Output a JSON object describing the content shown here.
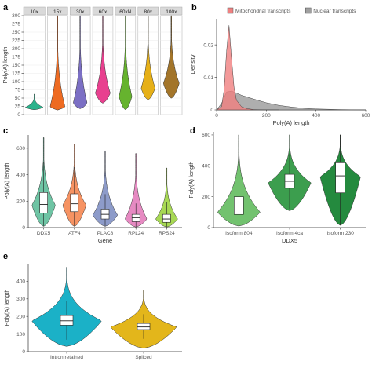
{
  "chart_data": [
    {
      "id": "a",
      "panel_label": "a",
      "type": "violin",
      "ylabel": "Poly(A) length",
      "ylim": [
        0,
        300
      ],
      "yticks": [
        0,
        25,
        50,
        75,
        100,
        125,
        150,
        175,
        200,
        225,
        250,
        275,
        300
      ],
      "facet_labels": [
        "10x",
        "15x",
        "30x",
        "60x",
        "60xN",
        "80x",
        "100x"
      ],
      "colors": [
        "#2bb38c",
        "#ee6b22",
        "#7b6fc4",
        "#e8408f",
        "#66b32e",
        "#e6b018",
        "#a3752a"
      ],
      "violins": [
        {
          "label": "10x",
          "min": 15,
          "max": 62,
          "peak": 22,
          "width": 0.9
        },
        {
          "label": "15x",
          "min": 14,
          "max": 300,
          "peak": 24,
          "width": 0.8
        },
        {
          "label": "30x",
          "min": 18,
          "max": 300,
          "peak": 35,
          "width": 0.75
        },
        {
          "label": "60x",
          "min": 35,
          "max": 300,
          "peak": 65,
          "width": 0.8
        },
        {
          "label": "60xN",
          "min": 15,
          "max": 300,
          "peak": 55,
          "width": 0.7
        },
        {
          "label": "80x",
          "min": 45,
          "max": 300,
          "peak": 80,
          "width": 0.75
        },
        {
          "label": "100x",
          "min": 50,
          "max": 300,
          "peak": 95,
          "width": 0.8
        }
      ]
    },
    {
      "id": "b",
      "panel_label": "b",
      "type": "density",
      "xlabel": "Poly(A) length",
      "ylabel": "Density",
      "xlim": [
        0,
        600
      ],
      "ylim": [
        0,
        0.028
      ],
      "xticks": [
        0,
        200,
        400,
        600
      ],
      "yticks": [
        0,
        0.01,
        0.02
      ],
      "legend_position": "top",
      "series": [
        {
          "name": "Mitochondrial transcripts",
          "color": "#f08080",
          "x": [
            0,
            20,
            30,
            40,
            50,
            60,
            70,
            80,
            100,
            120,
            150,
            200,
            250
          ],
          "y": [
            0,
            0.001,
            0.006,
            0.018,
            0.026,
            0.016,
            0.007,
            0.003,
            0.001,
            0.0004,
            0.0001,
            0,
            0
          ]
        },
        {
          "name": "Nuclear transcripts",
          "color": "#a0a0a0",
          "x": [
            0,
            20,
            40,
            60,
            80,
            100,
            150,
            200,
            250,
            300,
            350,
            400,
            450,
            500,
            600
          ],
          "y": [
            0,
            0.002,
            0.0055,
            0.0058,
            0.0052,
            0.0045,
            0.0033,
            0.0022,
            0.0014,
            0.0009,
            0.0005,
            0.0003,
            0.0002,
            0.0001,
            0
          ]
        }
      ]
    },
    {
      "id": "c",
      "panel_label": "c",
      "type": "violin",
      "xlabel": "Gene",
      "ylabel": "Poly(A) length",
      "ylim": [
        0,
        700
      ],
      "yticks": [
        0,
        200,
        400,
        600
      ],
      "colors": [
        "#6ec4a4",
        "#f69363",
        "#8d9bc9",
        "#e68ac2",
        "#a7d854"
      ],
      "violins": [
        {
          "label": "DDX5",
          "min": 10,
          "max": 680,
          "q1": 110,
          "median": 175,
          "q3": 265,
          "peak": 170,
          "width": 0.85
        },
        {
          "label": "ATF4",
          "min": 10,
          "max": 630,
          "q1": 120,
          "median": 180,
          "q3": 255,
          "peak": 170,
          "width": 0.85
        },
        {
          "label": "PLAC8",
          "min": 10,
          "max": 580,
          "q1": 65,
          "median": 100,
          "q3": 140,
          "peak": 95,
          "width": 0.9
        },
        {
          "label": "RPL24",
          "min": 5,
          "max": 560,
          "q1": 45,
          "median": 75,
          "q3": 100,
          "peak": 65,
          "width": 0.8
        },
        {
          "label": "RPS24",
          "min": 5,
          "max": 450,
          "q1": 40,
          "median": 65,
          "q3": 100,
          "peak": 65,
          "width": 0.8
        }
      ]
    },
    {
      "id": "d",
      "panel_label": "d",
      "type": "violin",
      "xlabel": "DDX5",
      "ylabel": "Poly(A) length",
      "ylim": [
        0,
        620
      ],
      "yticks": [
        0,
        200,
        400,
        600
      ],
      "colors": [
        "#72c26f",
        "#3c9e4e",
        "#248a3e"
      ],
      "violins": [
        {
          "label": "Isoform 804",
          "min": 10,
          "max": 600,
          "q1": 85,
          "median": 140,
          "q3": 200,
          "peak": 100,
          "width": 0.9
        },
        {
          "label": "Isoform 4ca",
          "min": 110,
          "max": 600,
          "q1": 255,
          "median": 300,
          "q3": 345,
          "peak": 290,
          "width": 0.9
        },
        {
          "label": "Isoform 230",
          "min": 15,
          "max": 600,
          "q1": 225,
          "median": 335,
          "q3": 420,
          "peak": 330,
          "width": 0.85
        }
      ]
    },
    {
      "id": "e",
      "panel_label": "e",
      "type": "violin",
      "ylabel": "Poly(A) length",
      "ylim": [
        0,
        500
      ],
      "yticks": [
        0,
        100,
        200,
        300,
        400
      ],
      "colors": [
        "#1bb1c7",
        "#e3b61b"
      ],
      "violins": [
        {
          "label": "Intron retained",
          "min": 30,
          "max": 480,
          "q1": 150,
          "median": 175,
          "q3": 205,
          "peak": 175,
          "width": 0.95
        },
        {
          "label": "Spliced",
          "min": 20,
          "max": 350,
          "q1": 125,
          "median": 140,
          "q3": 160,
          "peak": 140,
          "width": 0.9
        }
      ]
    }
  ]
}
